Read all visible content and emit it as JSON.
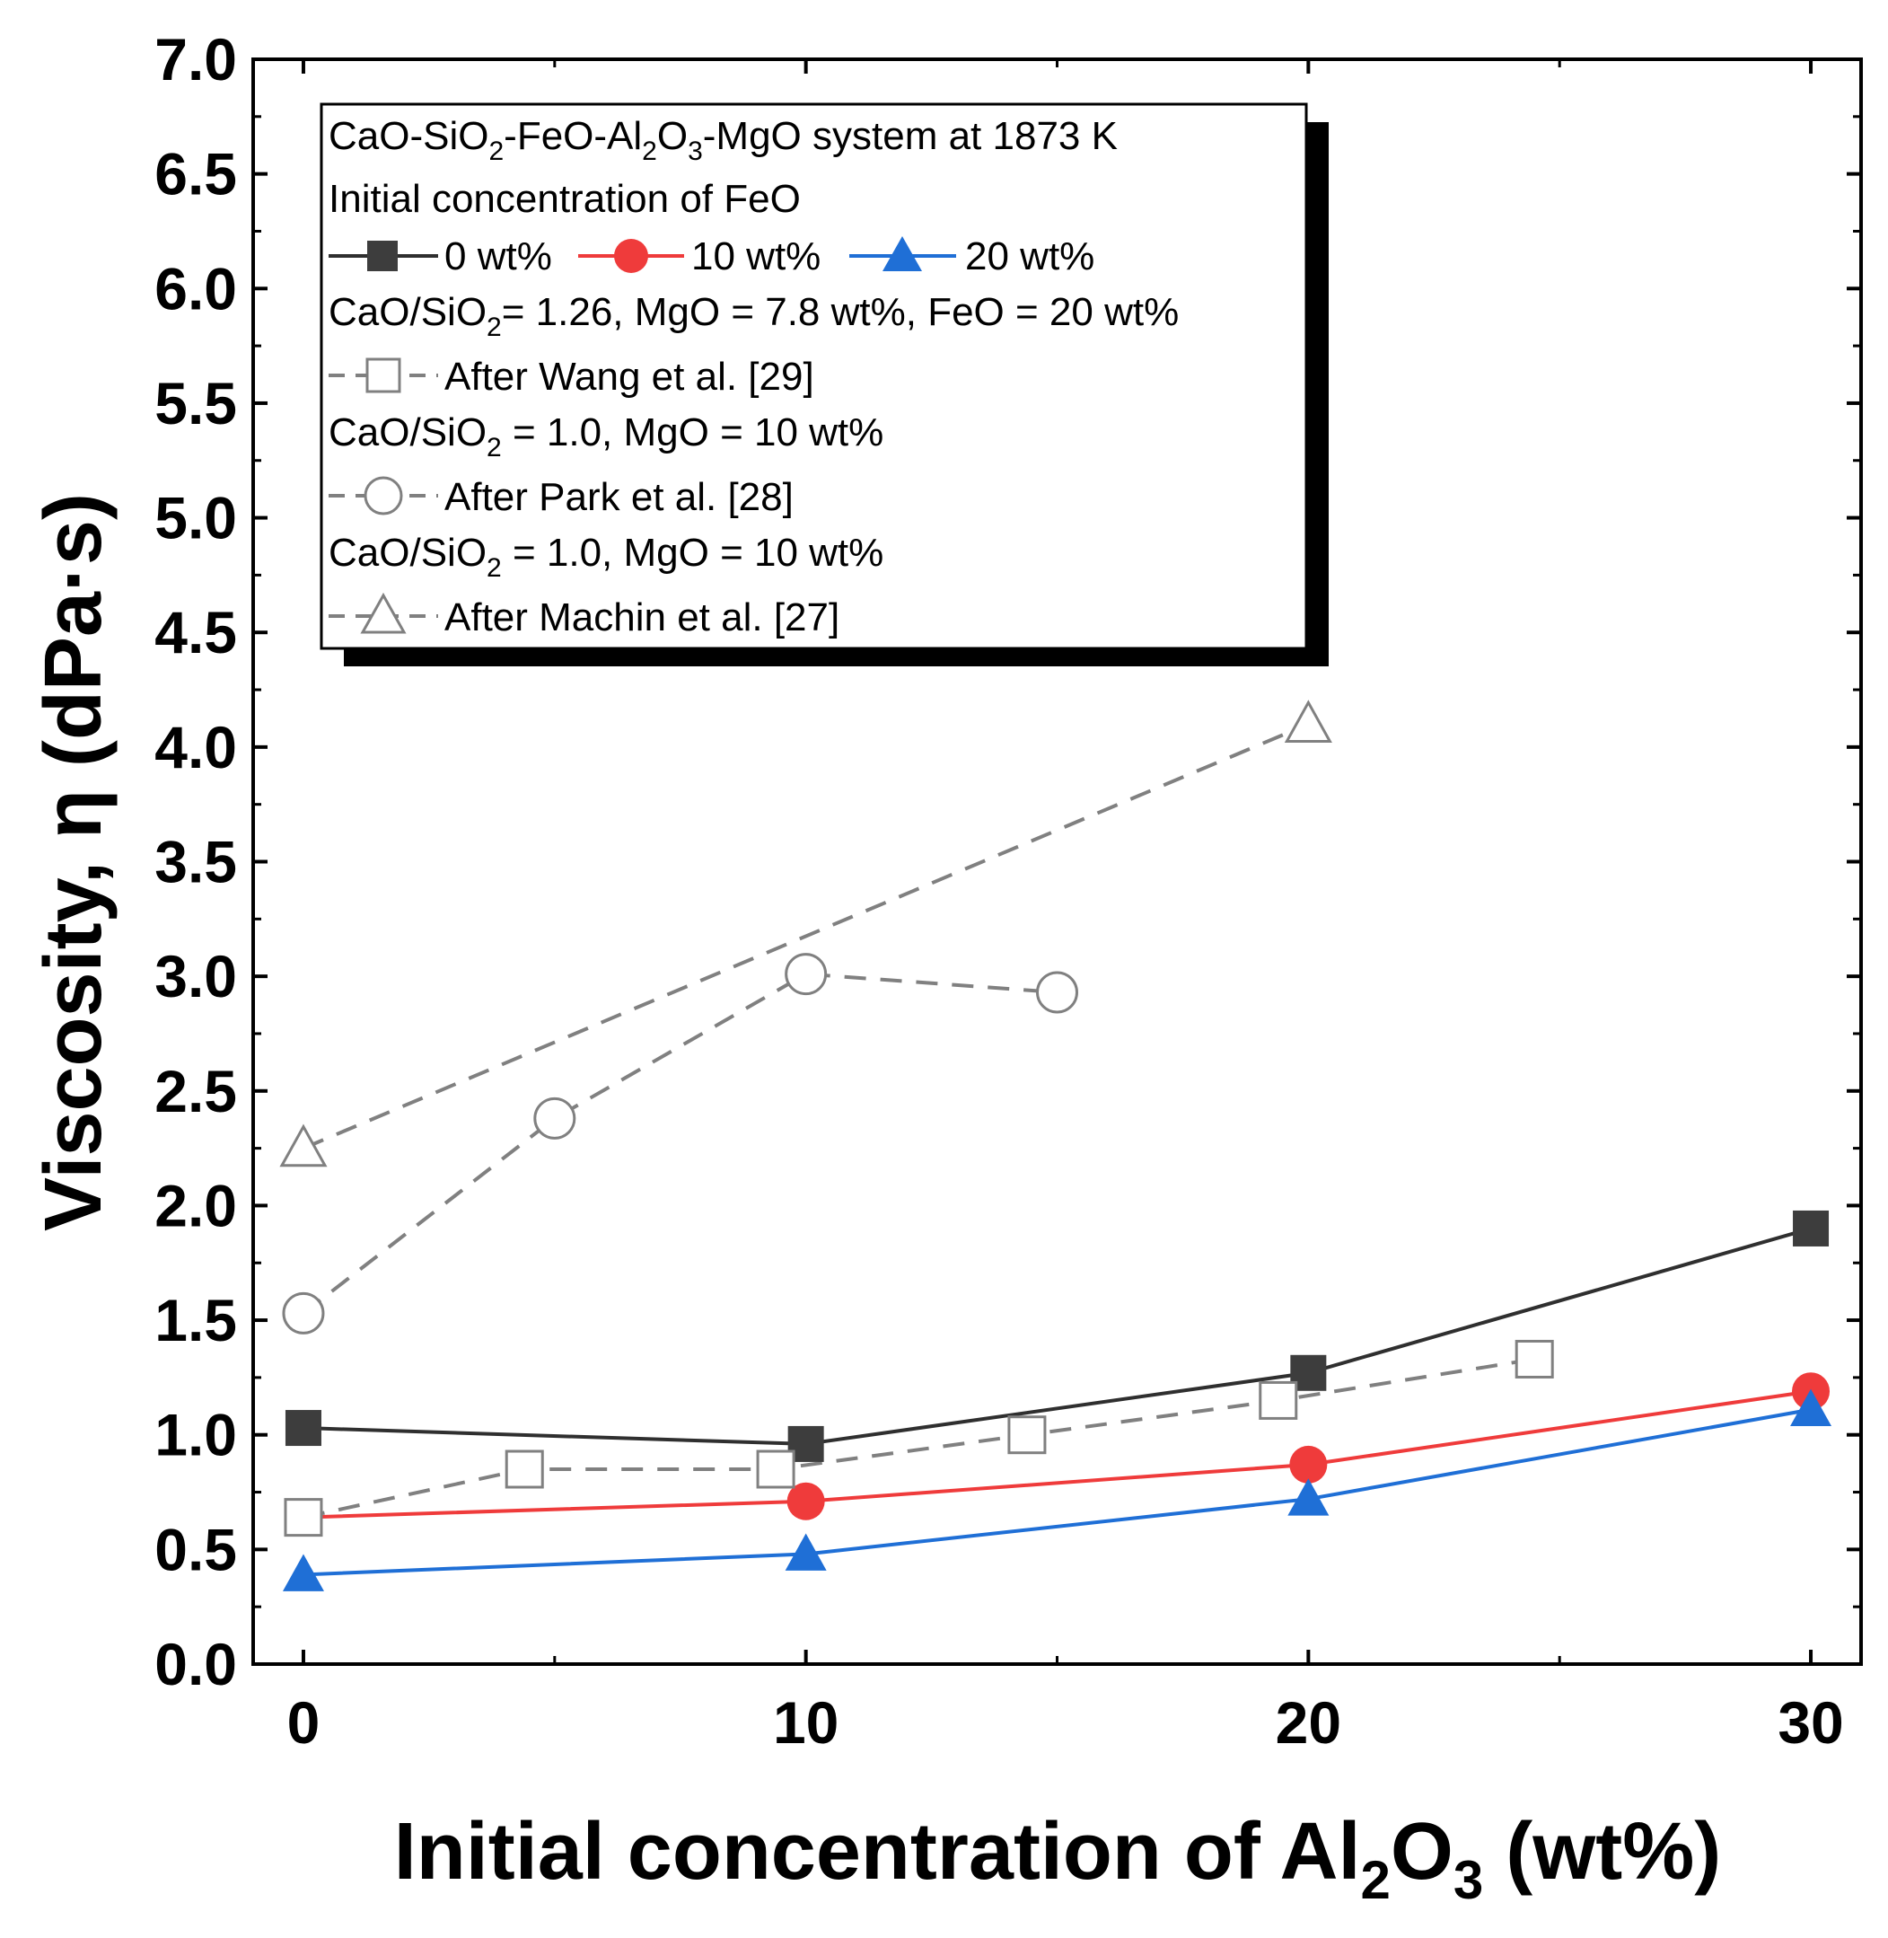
{
  "chart_data": {
    "type": "line",
    "title": "",
    "xlabel": "Initial concentration of Al2O3 (wt%)",
    "ylabel": "Viscosity, η (dPa·s)",
    "xlim": [
      -1,
      31
    ],
    "ylim": [
      0,
      7
    ],
    "x_ticks": [
      "0",
      "10",
      "20",
      "30"
    ],
    "y_ticks": [
      "0.0",
      "0.5",
      "1.0",
      "1.5",
      "2.0",
      "2.5",
      "3.0",
      "3.5",
      "4.0",
      "4.5",
      "5.0",
      "5.5",
      "6.0",
      "6.5",
      "7.0"
    ],
    "legend": {
      "system": "CaO-SiO2-FeO-Al2O3-MgO system at 1873 K",
      "group": "Initial concentration of FeO",
      "wang_conditions": "CaO/SiO2= 1.26, MgO = 7.8 wt%, FeO = 20 wt%",
      "park_conditions": "CaO/SiO2 = 1.0, MgO = 10 wt%",
      "machin_conditions": "CaO/SiO2 = 1.0, MgO = 10 wt%",
      "placement": "top-left"
    },
    "series": [
      {
        "name": "0 wt%",
        "color": "#2f2f2f",
        "marker": "square-filled",
        "line": "solid",
        "x": [
          0,
          10,
          20,
          30
        ],
        "y": [
          1.03,
          0.96,
          1.27,
          1.9
        ]
      },
      {
        "name": "10 wt%",
        "color": "#ef3b3b",
        "marker": "circle-filled",
        "line": "solid",
        "x": [
          0,
          10,
          20,
          30
        ],
        "y": [
          0.64,
          0.71,
          0.87,
          1.19
        ]
      },
      {
        "name": "20 wt%",
        "color": "#1f6fd6",
        "marker": "triangle-filled",
        "line": "solid",
        "x": [
          0,
          10,
          20,
          30
        ],
        "y": [
          0.39,
          0.48,
          0.72,
          1.11
        ]
      },
      {
        "name": "After Wang et al. [29]",
        "color": "#808080",
        "marker": "square-open",
        "line": "dashed",
        "x": [
          0,
          4.4,
          9.4,
          14.4,
          19.4,
          24.5
        ],
        "y": [
          0.64,
          0.85,
          0.85,
          1.0,
          1.15,
          1.33
        ]
      },
      {
        "name": "After Park et al. [28]",
        "color": "#808080",
        "marker": "circle-open",
        "line": "dashed",
        "x": [
          0,
          5,
          10,
          15
        ],
        "y": [
          1.53,
          2.38,
          3.01,
          2.93
        ]
      },
      {
        "name": "After Machin et al. [27]",
        "color": "#808080",
        "marker": "triangle-open",
        "line": "dashed",
        "x": [
          0,
          20
        ],
        "y": [
          2.25,
          4.1
        ]
      }
    ]
  }
}
